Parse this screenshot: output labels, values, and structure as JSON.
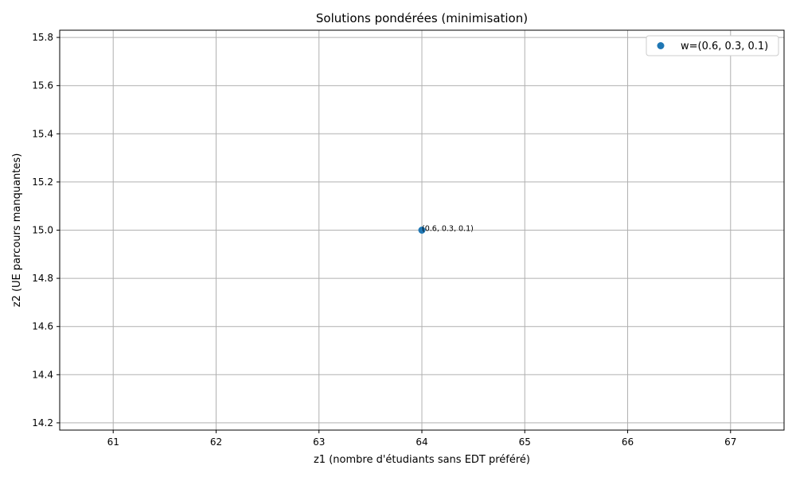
{
  "chart_data": {
    "type": "scatter",
    "title": "Solutions pondérées (minimisation)",
    "xlabel": "z1 (nombre d'étudiants sans EDT préféré)",
    "ylabel": "z2 (UE parcours manquantes)",
    "xlim": [
      60.48,
      67.52
    ],
    "ylim": [
      14.17,
      15.83
    ],
    "xticks": [
      "61",
      "62",
      "63",
      "64",
      "65",
      "66",
      "67"
    ],
    "xtick_values": [
      61,
      62,
      63,
      64,
      65,
      66,
      67
    ],
    "yticks": [
      "14.2",
      "14.4",
      "14.6",
      "14.8",
      "15.0",
      "15.2",
      "15.4",
      "15.6",
      "15.8"
    ],
    "ytick_values": [
      14.2,
      14.4,
      14.6,
      14.8,
      15.0,
      15.2,
      15.4,
      15.6,
      15.8
    ],
    "grid": true,
    "legend_position": "top-right",
    "series": [
      {
        "name": "w=(0.6, 0.3, 0.1)",
        "color": "#1f77b4",
        "points": [
          {
            "x": 64,
            "y": 15.0,
            "label": "(0.6, 0.3, 0.1)"
          }
        ]
      }
    ]
  }
}
